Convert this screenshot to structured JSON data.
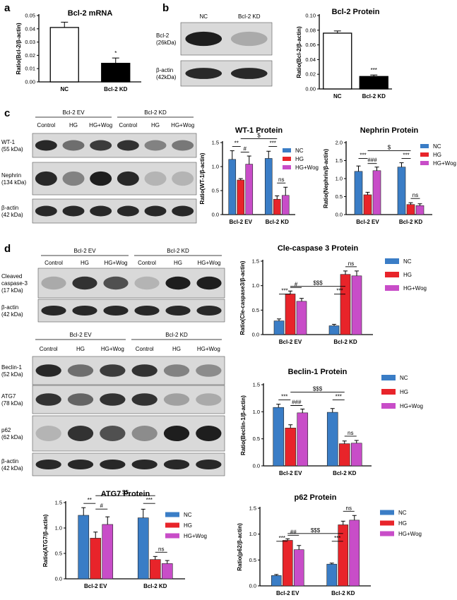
{
  "panels": {
    "a": "a",
    "b": "b",
    "c": "c",
    "d": "d"
  },
  "colors": {
    "nc": "#3a7dc6",
    "hg": "#e8242a",
    "hg_wog": "#c84dc8",
    "bar_white": "#ffffff",
    "bar_black": "#000000"
  },
  "blots": {
    "b": {
      "lanes": [
        "NC",
        "Bcl-2 KD"
      ],
      "rows": [
        {
          "label1": "Bcl-2",
          "label2": "(26kDa)",
          "intensities": [
            0.95,
            0.25
          ]
        },
        {
          "label1": "β-actin",
          "label2": "(42kDa)",
          "intensities": [
            0.9,
            0.9
          ]
        }
      ]
    },
    "c": {
      "groups": [
        "Bcl-2 EV",
        "Bcl-2 KD"
      ],
      "lanes": [
        "Control",
        "HG",
        "HG+Wog",
        "Control",
        "HG",
        "HG+Wog"
      ],
      "rows": [
        {
          "label1": "WT-1",
          "label2": "(55 kDa)",
          "intensities": [
            0.9,
            0.55,
            0.8,
            0.85,
            0.45,
            0.5
          ]
        },
        {
          "label1": "Nephrin",
          "label2": "(134 kDa)",
          "intensities": [
            0.9,
            0.45,
            0.95,
            0.9,
            0.2,
            0.2
          ]
        },
        {
          "label1": "β-actin",
          "label2": "(42 kDa)",
          "intensities": [
            0.9,
            0.9,
            0.9,
            0.9,
            0.9,
            0.9
          ]
        }
      ]
    },
    "d1": {
      "groups": [
        "Bcl-2 EV",
        "Bcl-2 KD"
      ],
      "lanes": [
        "Control",
        "HG",
        "HG+Wog",
        "Control",
        "HG",
        "HG+Wog"
      ],
      "rows": [
        {
          "label1": "Cleaved",
          "label2": "caspase-3",
          "label3": "(17 kDa)",
          "intensities": [
            0.25,
            0.85,
            0.7,
            0.2,
            0.95,
            0.95
          ]
        },
        {
          "label1": "β-actin",
          "label2": "(42 kDa)",
          "intensities": [
            0.9,
            0.9,
            0.9,
            0.9,
            0.9,
            0.9
          ]
        }
      ]
    },
    "d2": {
      "groups": [
        "Bcl-2 EV",
        "Bcl-2 KD"
      ],
      "lanes": [
        "Control",
        "HG",
        "HG+Wog",
        "Control",
        "HG",
        "HG+Wog"
      ],
      "rows": [
        {
          "label1": "Beclin-1",
          "label2": "(52 kDa)",
          "intensities": [
            0.9,
            0.55,
            0.8,
            0.85,
            0.45,
            0.4
          ]
        },
        {
          "label1": "ATG7",
          "label2": "(78 kDa)",
          "intensities": [
            0.85,
            0.6,
            0.85,
            0.85,
            0.3,
            0.25
          ]
        },
        {
          "label1": "p62",
          "label2": "(62 kDa)",
          "intensities": [
            0.2,
            0.85,
            0.7,
            0.4,
            0.95,
            0.95
          ]
        },
        {
          "label1": "β-actin",
          "label2": "(42 kDa)",
          "intensities": [
            0.9,
            0.9,
            0.9,
            0.9,
            0.9,
            0.9
          ]
        }
      ]
    }
  },
  "chart_data": [
    {
      "id": "a",
      "type": "bar",
      "title": "Bcl-2 mRNA",
      "ylabel": "Ratio(Bcl-2/β-actin)",
      "categories": [
        "NC",
        "Bcl-2 KD"
      ],
      "values": [
        0.041,
        0.014
      ],
      "errors": [
        0.004,
        0.004
      ],
      "ylim": [
        0,
        0.05
      ],
      "yticks": [
        "0.00",
        "0.01",
        "0.02",
        "0.03",
        "0.04",
        "0.05"
      ],
      "significance": [
        {
          "bar": 1,
          "label": "*"
        }
      ]
    },
    {
      "id": "b",
      "type": "bar",
      "title": "Bcl-2 Protein",
      "ylabel": "Ratio(Bcl-2/β-actin)",
      "categories": [
        "NC",
        "Bcl-2 KD"
      ],
      "values": [
        0.076,
        0.017
      ],
      "errors": [
        0.003,
        0.002
      ],
      "ylim": [
        0,
        0.1
      ],
      "yticks": [
        "0.00",
        "0.02",
        "0.04",
        "0.06",
        "0.08",
        "0.10"
      ],
      "significance": [
        {
          "bar": 1,
          "label": "***"
        }
      ]
    },
    {
      "id": "wt1",
      "type": "bar",
      "title": "WT-1 Protein",
      "ylabel": "Ratio(WT-1/β-actin)",
      "categories": [
        "Bcl-2 EV",
        "Bcl-2 KD"
      ],
      "series": [
        {
          "name": "NC",
          "values": [
            1.15,
            1.17
          ],
          "errors": [
            0.18,
            0.15
          ]
        },
        {
          "name": "HG",
          "values": [
            0.72,
            0.32
          ],
          "errors": [
            0.03,
            0.07
          ]
        },
        {
          "name": "HG+Wog",
          "values": [
            1.05,
            0.4
          ],
          "errors": [
            0.17,
            0.17
          ]
        }
      ],
      "ylim": [
        0,
        1.5
      ],
      "yticks": [
        "0.0",
        "0.5",
        "1.0",
        "1.5"
      ],
      "annotations": [
        "**",
        "#",
        "***",
        "ns",
        "$"
      ]
    },
    {
      "id": "nephrin",
      "type": "bar",
      "title": "Nephrin Protein",
      "ylabel": "Ratio(Nephrin/β-actin)",
      "categories": [
        "Bcl-2 EV",
        "Bcl-2 KD"
      ],
      "series": [
        {
          "name": "NC",
          "values": [
            1.2,
            1.32
          ],
          "errors": [
            0.15,
            0.12
          ]
        },
        {
          "name": "HG",
          "values": [
            0.55,
            0.28
          ],
          "errors": [
            0.07,
            0.05
          ]
        },
        {
          "name": "HG+Wog",
          "values": [
            1.22,
            0.25
          ],
          "errors": [
            0.1,
            0.05
          ]
        }
      ],
      "ylim": [
        0,
        2.0
      ],
      "yticks": [
        "0.0",
        "0.5",
        "1.0",
        "1.5",
        "2.0"
      ],
      "annotations": [
        "***",
        "###",
        "***",
        "ns",
        "$"
      ]
    },
    {
      "id": "clecasp",
      "type": "bar",
      "title": "Cle-caspase 3 Protein",
      "ylabel": "Ratio(Cle-caspase3/β-actin)",
      "categories": [
        "Bcl-2 EV",
        "Bcl-2 KD"
      ],
      "series": [
        {
          "name": "NC",
          "values": [
            0.28,
            0.18
          ],
          "errors": [
            0.04,
            0.03
          ]
        },
        {
          "name": "HG",
          "values": [
            0.83,
            1.23
          ],
          "errors": [
            0.06,
            0.07
          ]
        },
        {
          "name": "HG+Wog",
          "values": [
            0.68,
            1.2
          ],
          "errors": [
            0.06,
            0.1
          ]
        }
      ],
      "ylim": [
        0,
        1.5
      ],
      "yticks": [
        "0.0",
        "0.5",
        "1.0",
        "1.5"
      ],
      "annotations": [
        "***",
        "#",
        "***",
        "ns",
        "$$$"
      ]
    },
    {
      "id": "beclin",
      "type": "bar",
      "title": "Beclin-1 Protein",
      "ylabel": "Ratio(Beclin-1/β-actin)",
      "categories": [
        "Bcl-2 EV",
        "Bcl-2 KD"
      ],
      "series": [
        {
          "name": "NC",
          "values": [
            1.08,
            0.99
          ],
          "errors": [
            0.06,
            0.07
          ]
        },
        {
          "name": "HG",
          "values": [
            0.7,
            0.41
          ],
          "errors": [
            0.06,
            0.05
          ]
        },
        {
          "name": "HG+Wog",
          "values": [
            0.98,
            0.42
          ],
          "errors": [
            0.07,
            0.05
          ]
        }
      ],
      "ylim": [
        0,
        1.5
      ],
      "yticks": [
        "0.0",
        "0.5",
        "1.0",
        "1.5"
      ],
      "annotations": [
        "***",
        "###",
        "***",
        "ns",
        "$$$"
      ]
    },
    {
      "id": "atg7",
      "type": "bar",
      "title": "ATG7 Protein",
      "ylabel": "Ratio(ATG7/β-actin)",
      "categories": [
        "Bcl-2 EV",
        "Bcl-2 KD"
      ],
      "series": [
        {
          "name": "NC",
          "values": [
            1.25,
            1.2
          ],
          "errors": [
            0.15,
            0.17
          ]
        },
        {
          "name": "HG",
          "values": [
            0.8,
            0.38
          ],
          "errors": [
            0.12,
            0.06
          ]
        },
        {
          "name": "HG+Wog",
          "values": [
            1.07,
            0.3
          ],
          "errors": [
            0.15,
            0.06
          ]
        }
      ],
      "ylim": [
        0,
        1.5
      ],
      "yticks": [
        "0.0",
        "0.5",
        "1.0",
        "1.5"
      ],
      "annotations": [
        "**",
        "#",
        "***",
        "ns",
        "$$"
      ]
    },
    {
      "id": "p62",
      "type": "bar",
      "title": "p62 Protein",
      "ylabel": "Ratio(p62/β-actin)",
      "categories": [
        "Bcl-2 EV",
        "Bcl-2 KD"
      ],
      "series": [
        {
          "name": "NC",
          "values": [
            0.2,
            0.42
          ],
          "errors": [
            0.02,
            0.02
          ]
        },
        {
          "name": "HG",
          "values": [
            0.88,
            1.18
          ],
          "errors": [
            0.03,
            0.07
          ]
        },
        {
          "name": "HG+Wog",
          "values": [
            0.7,
            1.27
          ],
          "errors": [
            0.08,
            0.09
          ]
        }
      ],
      "ylim": [
        0,
        1.5
      ],
      "yticks": [
        "0.0",
        "0.5",
        "1.0",
        "1.5"
      ],
      "annotations": [
        "***",
        "##",
        "***",
        "ns",
        "$$$"
      ]
    }
  ]
}
